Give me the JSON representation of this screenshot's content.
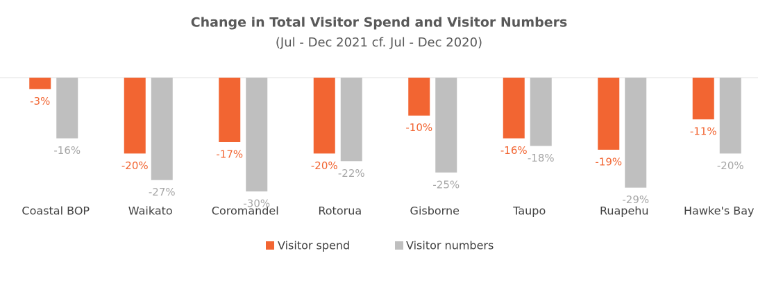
{
  "chart_data": {
    "type": "bar",
    "title": "Change in Total Visitor Spend and Visitor Numbers",
    "subtitle": "(Jul - Dec 2021 cf. Jul - Dec 2020)",
    "categories": [
      "Coastal BOP",
      "Waikato",
      "Coromandel",
      "Rotorua",
      "Gisborne",
      "Taupo",
      "Ruapehu",
      "Hawke's Bay"
    ],
    "series": [
      {
        "name": "Visitor spend",
        "color": "#f26532",
        "values": [
          -3,
          -20,
          -17,
          -20,
          -10,
          -16,
          -19,
          -11
        ],
        "value_labels": [
          "-3%",
          "-20%",
          "-17%",
          "-20%",
          "-10%",
          "-16%",
          "-19%",
          "-11%"
        ],
        "label_color": "#f26532"
      },
      {
        "name": "Visitor numbers",
        "color": "#bfbfbf",
        "values": [
          -16,
          -27,
          -30,
          -22,
          -25,
          -18,
          -29,
          -20
        ],
        "value_labels": [
          "-16%",
          "-27%",
          "-30%",
          "-22%",
          "-25%",
          "-18%",
          "-29%",
          "-20%"
        ],
        "label_color": "#a6a6a6"
      }
    ],
    "legend": "bottom"
  }
}
